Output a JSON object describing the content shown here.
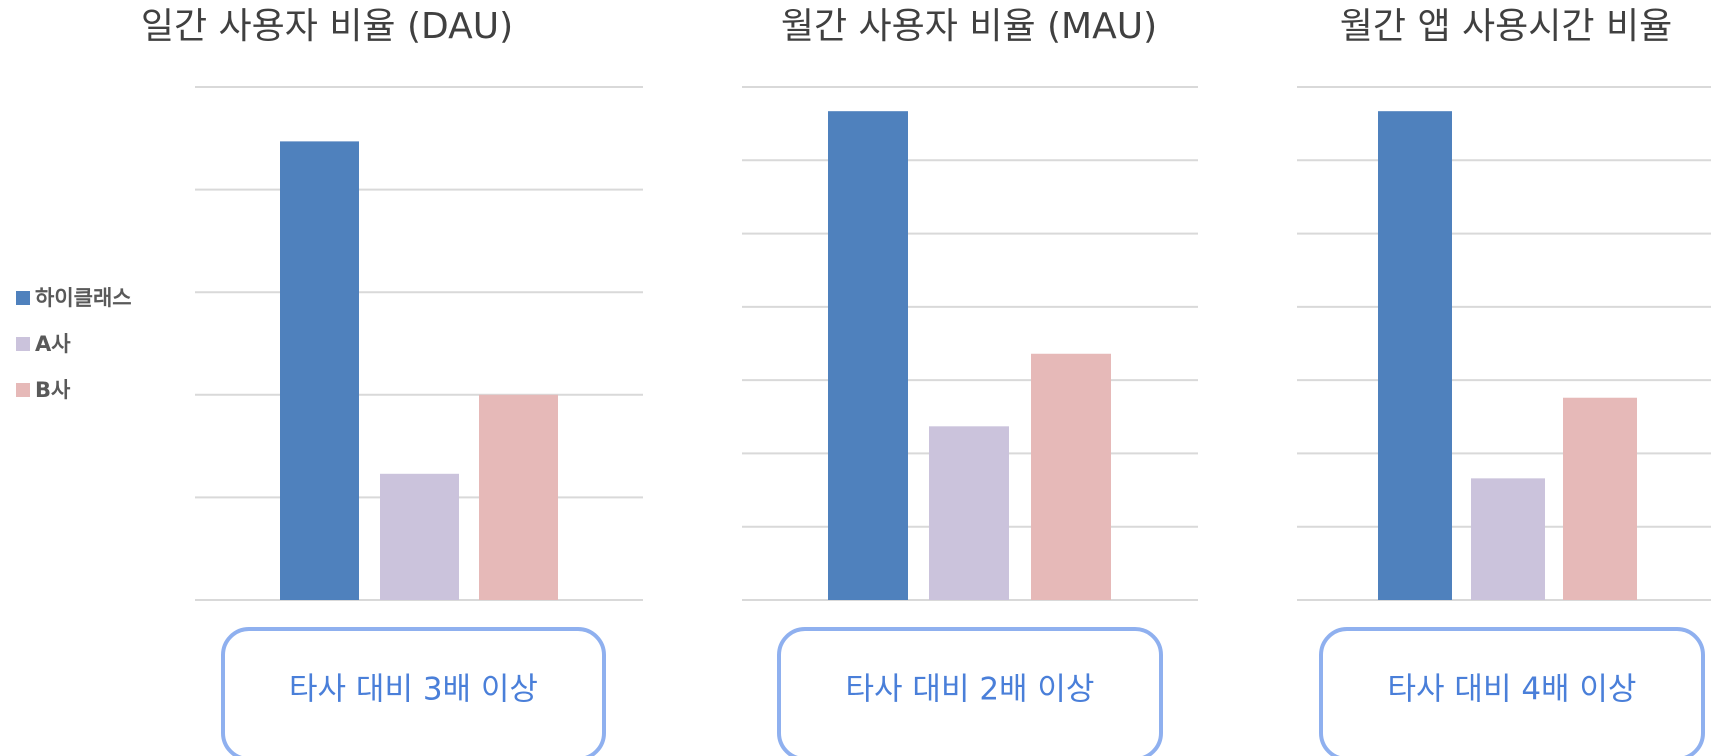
{
  "legend": {
    "position": "left",
    "items": [
      {
        "name": "하이클래스",
        "color": "#4f81bd"
      },
      {
        "name": "A사",
        "color": "#cbc3dc"
      },
      {
        "name": "B사",
        "color": "#e6b9b8"
      }
    ]
  },
  "chart_data": [
    {
      "type": "bar",
      "title": "일간 사용자 비율 (DAU)",
      "values": [
        4.47,
        1.23,
        2.0
      ],
      "ylim": [
        0,
        5
      ],
      "yticks": [
        0,
        1,
        2,
        3,
        4,
        5
      ],
      "grid": true,
      "annotation": "타사 대비 3배 이상"
    },
    {
      "type": "bar",
      "title": "월간 사용자 비율 (MAU)",
      "values": [
        6.67,
        2.37,
        3.36
      ],
      "ylim": [
        0,
        7
      ],
      "yticks": [
        0,
        1,
        2,
        3,
        4,
        5,
        6,
        7
      ],
      "grid": true,
      "annotation": "타사 대비 2배 이상"
    },
    {
      "type": "bar",
      "title": "월간 앱 사용시간 비율",
      "values": [
        6.67,
        1.66,
        2.76
      ],
      "ylim": [
        0,
        7
      ],
      "yticks": [
        0,
        1,
        2,
        3,
        4,
        5,
        6,
        7
      ],
      "grid": true,
      "annotation": "타사 대비 4배 이상"
    }
  ]
}
